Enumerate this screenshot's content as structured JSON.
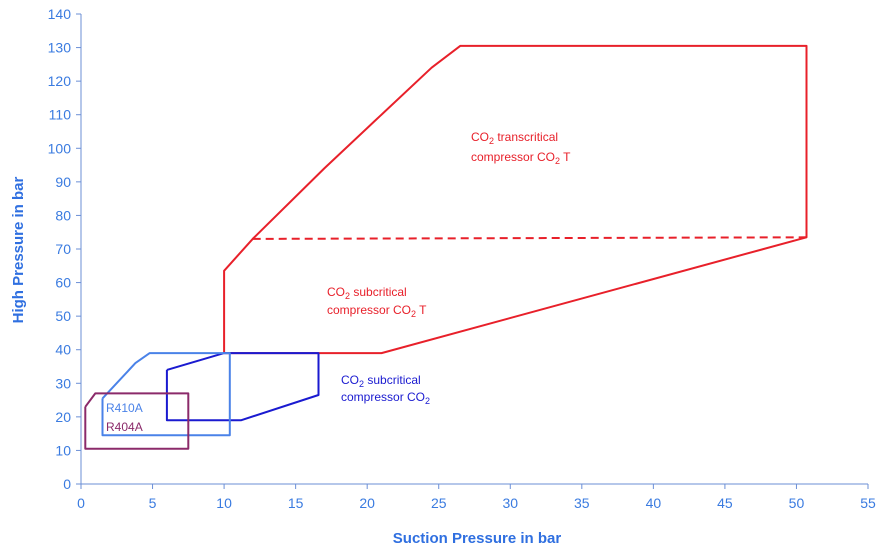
{
  "chart_data": {
    "type": "line",
    "title": "",
    "xlabel": "Suction Pressure in bar",
    "ylabel": "High Pressure in bar",
    "xlim": [
      0,
      55
    ],
    "ylim": [
      0,
      140
    ],
    "xticks": [
      "0",
      "5",
      "10",
      "15",
      "20",
      "25",
      "30",
      "35",
      "40",
      "45",
      "50",
      "55"
    ],
    "yticks": [
      "0",
      "10",
      "20",
      "30",
      "40",
      "50",
      "60",
      "70",
      "80",
      "90",
      "100",
      "110",
      "120",
      "130",
      "140"
    ],
    "grid": false,
    "legend": "none",
    "colors": {
      "axis": "#2f6fe0",
      "co2_transcritical": "#e8202a",
      "co2_subcritical": "#1a1ad0",
      "r410a": "#4a82e8",
      "r404a": "#8b2a6a"
    },
    "series": [
      {
        "key": "co2_transcritical",
        "x": [
          10,
          10,
          12,
          17,
          20.5,
          24.5,
          26.5,
          50.7,
          50.7,
          21,
          10
        ],
        "y": [
          39,
          63.5,
          73,
          94,
          108,
          124,
          130.5,
          130.5,
          73.5,
          39,
          39
        ],
        "style": "solid"
      },
      {
        "key": "co2_transcritical_boundary",
        "x": [
          12,
          50.7
        ],
        "y": [
          73,
          73.5
        ],
        "style": "dashed"
      },
      {
        "key": "co2_subcritical",
        "x": [
          6,
          10,
          16.6,
          16.6,
          11.2,
          6,
          6
        ],
        "y": [
          34,
          39,
          39,
          26.5,
          19,
          19,
          34
        ],
        "style": "solid"
      },
      {
        "key": "r410a",
        "x": [
          1.5,
          3.8,
          4.8,
          10.4,
          10.4,
          1.5,
          1.5
        ],
        "y": [
          25.5,
          36,
          39,
          39,
          14.5,
          14.5,
          25.5
        ],
        "style": "solid"
      },
      {
        "key": "r404a",
        "x": [
          0.3,
          1,
          7.5,
          7.5,
          0.3,
          0.3
        ],
        "y": [
          23,
          27,
          27,
          10.5,
          10.5,
          23
        ],
        "style": "solid"
      }
    ],
    "annotations": {
      "transcritical": {
        "line1_pre": "CO",
        "line1_sub": "2",
        "line1_post": " transcritical",
        "line2_pre": "compressor CO",
        "line2_sub": "2",
        "line2_post": " T"
      },
      "subcritical_t": {
        "line1_pre": "CO",
        "line1_sub": "2",
        "line1_post": " subcritical",
        "line2_pre": "compressor CO",
        "line2_sub": "2",
        "line2_post": " T"
      },
      "subcritical": {
        "line1_pre": "CO",
        "line1_sub": "2",
        "line1_post": " subcritical",
        "line2_pre": "compressor CO",
        "line2_sub": "2",
        "line2_post": ""
      },
      "r410a": "R410A",
      "r404a": "R404A"
    }
  }
}
